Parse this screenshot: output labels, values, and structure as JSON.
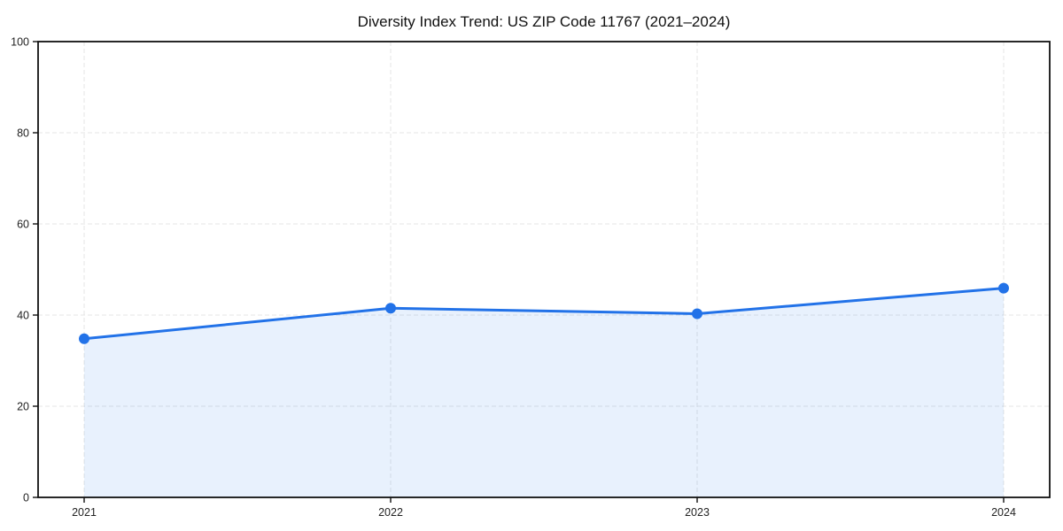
{
  "chart_data": {
    "type": "line",
    "title": "Diversity Index Trend: US ZIP Code 11767 (2021–2024)",
    "categories": [
      "2021",
      "2022",
      "2023",
      "2024"
    ],
    "series": [
      {
        "name": "Diversity Index",
        "values": [
          34.8,
          41.5,
          40.3,
          45.9
        ]
      }
    ],
    "xlabel": "",
    "ylabel": "",
    "ylim": [
      0,
      100
    ],
    "yticks": [
      0,
      20,
      40,
      60,
      80,
      100
    ],
    "grid": "dashed, horizontal and vertical",
    "legend": "none",
    "area_fill": true,
    "marker": "circle",
    "colors": {
      "line": "#2272e8",
      "marker": "#2272e8",
      "fill": "#2272e8",
      "fill_opacity": "0.1",
      "grid": "#e5e5e5",
      "spine": "#111111",
      "text": "#222222",
      "background": "#ffffff"
    }
  }
}
